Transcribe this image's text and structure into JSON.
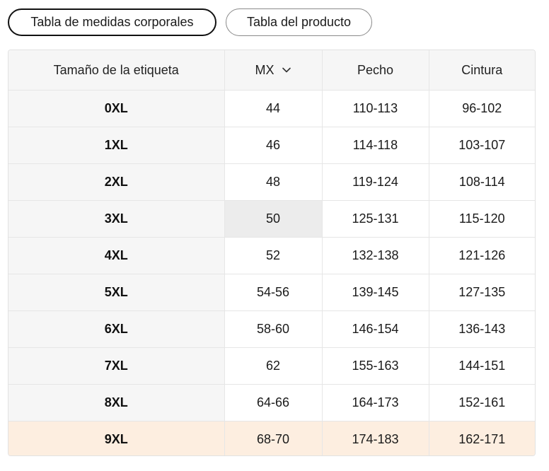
{
  "tabs": {
    "body_measurements": "Tabla de medidas corporales",
    "product": "Tabla del producto"
  },
  "table": {
    "headers": {
      "label_size": "Tamaño de la etiqueta",
      "region": "MX",
      "chest": "Pecho",
      "waist": "Cintura"
    },
    "rows": [
      {
        "size": "0XL",
        "mx": "44",
        "chest": "110-113",
        "waist": "96-102"
      },
      {
        "size": "1XL",
        "mx": "46",
        "chest": "114-118",
        "waist": "103-107"
      },
      {
        "size": "2XL",
        "mx": "48",
        "chest": "119-124",
        "waist": "108-114"
      },
      {
        "size": "3XL",
        "mx": "50",
        "chest": "125-131",
        "waist": "115-120"
      },
      {
        "size": "4XL",
        "mx": "52",
        "chest": "132-138",
        "waist": "121-126"
      },
      {
        "size": "5XL",
        "mx": "54-56",
        "chest": "139-145",
        "waist": "127-135"
      },
      {
        "size": "6XL",
        "mx": "58-60",
        "chest": "146-154",
        "waist": "136-143"
      },
      {
        "size": "7XL",
        "mx": "62",
        "chest": "155-163",
        "waist": "144-151"
      },
      {
        "size": "8XL",
        "mx": "64-66",
        "chest": "164-173",
        "waist": "152-161"
      },
      {
        "size": "9XL",
        "mx": "68-70",
        "chest": "174-183",
        "waist": "162-171"
      }
    ]
  },
  "colors": {
    "header_bg": "#f6f6f6",
    "highlight_row_bg": "#fdeee0",
    "hover_cell_bg": "#ececec",
    "active_tab_border": "#111111"
  },
  "icons": {
    "region_dropdown": "chevron-down-icon"
  }
}
